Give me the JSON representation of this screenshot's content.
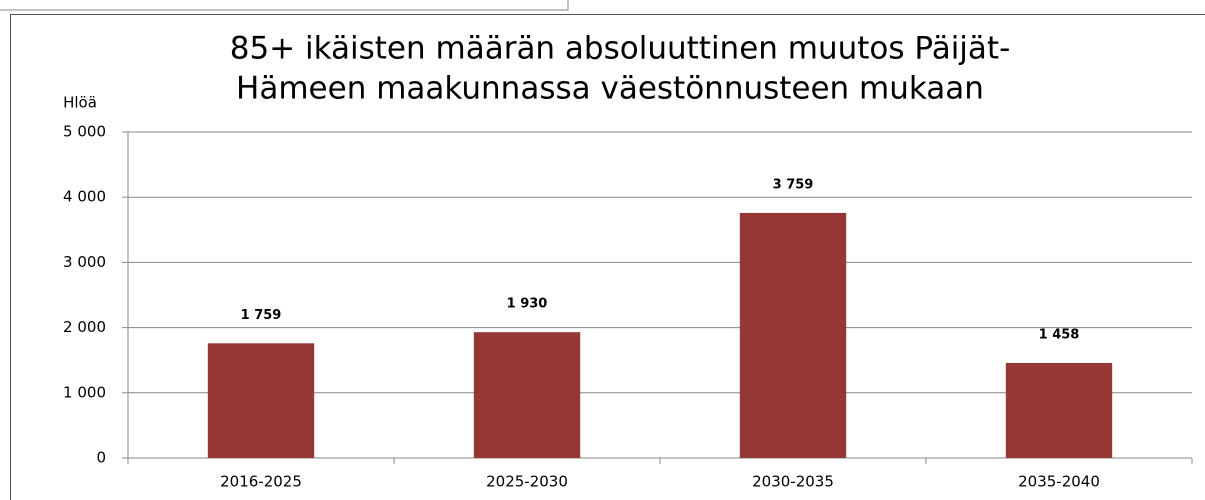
{
  "chart_data": {
    "type": "bar",
    "title": [
      "85+ ikäisten määrän absoluuttinen muutos Päijät-",
      "Hämeen maakunnassa väestönnusteen mukaan"
    ],
    "y_label": "Hlöä",
    "categories": [
      "2016-2025",
      "2025-2030",
      "2030-2035",
      "2035-2040"
    ],
    "values": [
      1759,
      1930,
      3759,
      1458
    ],
    "value_labels": [
      "1 759",
      "1 930",
      "3 759",
      "1 458"
    ],
    "color": "#953735",
    "ylim": [
      0,
      5000
    ],
    "yticks": [
      0,
      {
        "value": 1000,
        "label": "1 000"
      },
      {
        "value": 2000,
        "label": "2 000"
      },
      {
        "value": 3000,
        "label": "3 000"
      },
      {
        "value": 4000,
        "label": "4 000"
      },
      {
        "value": 5000,
        "label": "5 000"
      }
    ],
    "grid": true
  }
}
